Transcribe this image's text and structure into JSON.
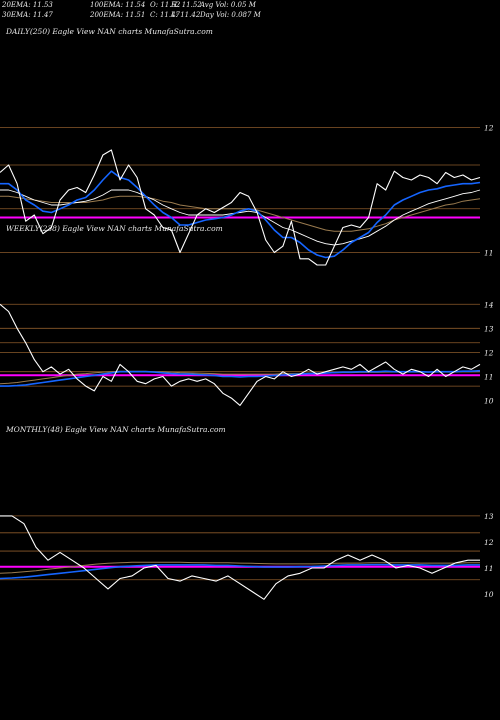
{
  "header": {
    "row1": [
      {
        "key": "ema20_label",
        "text": "20EMA: 11.53"
      },
      {
        "key": "ema100_label",
        "text": "100EMA: 11.54"
      },
      {
        "key": "open_label",
        "text": "O: 11.52"
      },
      {
        "key": "high_label",
        "text": "H: 11.52"
      },
      {
        "key": "avgvol_label",
        "text": "Avg Vol: 0.05 M"
      }
    ],
    "row2": [
      {
        "key": "ema30_label",
        "text": "30EMA: 11.47"
      },
      {
        "key": "ema200_label",
        "text": "200EMA: 11.51"
      },
      {
        "key": "close_label",
        "text": "C: 11.47"
      },
      {
        "key": "low_label",
        "text": "L: 11.42"
      },
      {
        "key": "dayvol_label",
        "text": "Day Vol: 0.087 M"
      }
    ]
  },
  "colors": {
    "background": "#000000",
    "price": "#ffffff",
    "ema_short": "#1565ff",
    "ema_long": "#9a7b4f",
    "ema_mid": "#ffffff",
    "level_line": "#ff00ff",
    "grid": "#8b5a2b"
  },
  "chart_data": [
    {
      "type": "line",
      "panel": "daily",
      "label": "DAILY(250) Eagle  View  NAN  charts MunafaSutra.com",
      "y_ticks": [
        12,
        11
      ],
      "ylim": [
        10.7,
        12.3
      ],
      "grid_levels": [
        12,
        11.7,
        11.35,
        11
      ],
      "level_line": 11.28,
      "series": [
        {
          "role": "price",
          "color": "#ffffff",
          "values": [
            11.64,
            11.7,
            11.55,
            11.25,
            11.3,
            11.15,
            11.2,
            11.42,
            11.5,
            11.52,
            11.48,
            11.62,
            11.78,
            11.82,
            11.58,
            11.7,
            11.6,
            11.35,
            11.3,
            11.2,
            11.18,
            11.0,
            11.15,
            11.3,
            11.35,
            11.32,
            11.36,
            11.4,
            11.48,
            11.45,
            11.32,
            11.1,
            11.0,
            11.05,
            11.25,
            10.95,
            10.95,
            10.9,
            10.9,
            11.05,
            11.2,
            11.22,
            11.2,
            11.28,
            11.55,
            11.5,
            11.65,
            11.6,
            11.58,
            11.62,
            11.6,
            11.55,
            11.64,
            11.6,
            11.62,
            11.58,
            11.6
          ]
        },
        {
          "role": "ema_short",
          "color": "#1565ff",
          "values": [
            11.55,
            11.55,
            11.5,
            11.42,
            11.38,
            11.33,
            11.32,
            11.35,
            11.38,
            11.42,
            11.44,
            11.5,
            11.58,
            11.65,
            11.6,
            11.58,
            11.52,
            11.45,
            11.38,
            11.32,
            11.28,
            11.22,
            11.22,
            11.24,
            11.26,
            11.27,
            11.28,
            11.3,
            11.33,
            11.35,
            11.33,
            11.26,
            11.18,
            11.12,
            11.12,
            11.08,
            11.02,
            10.98,
            10.96,
            10.97,
            11.02,
            11.08,
            11.12,
            11.16,
            11.24,
            11.3,
            11.38,
            11.42,
            11.45,
            11.48,
            11.5,
            11.51,
            11.53,
            11.54,
            11.55,
            11.55,
            11.56
          ]
        },
        {
          "role": "ema_mid",
          "color": "#ffffff",
          "values": [
            11.5,
            11.5,
            11.48,
            11.45,
            11.42,
            11.4,
            11.38,
            11.38,
            11.39,
            11.4,
            11.41,
            11.43,
            11.46,
            11.5,
            11.5,
            11.5,
            11.48,
            11.45,
            11.42,
            11.38,
            11.35,
            11.32,
            11.3,
            11.3,
            11.3,
            11.3,
            11.3,
            11.31,
            11.32,
            11.33,
            11.32,
            11.28,
            11.24,
            11.2,
            11.18,
            11.15,
            11.12,
            11.09,
            11.07,
            11.06,
            11.07,
            11.09,
            11.11,
            11.13,
            11.17,
            11.21,
            11.26,
            11.3,
            11.33,
            11.36,
            11.39,
            11.41,
            11.43,
            11.45,
            11.47,
            11.48,
            11.5
          ]
        },
        {
          "role": "ema_long",
          "color": "#9a7b4f",
          "values": [
            11.45,
            11.45,
            11.44,
            11.43,
            11.42,
            11.41,
            11.4,
            11.4,
            11.4,
            11.4,
            11.4,
            11.41,
            11.42,
            11.44,
            11.45,
            11.45,
            11.45,
            11.44,
            11.43,
            11.41,
            11.4,
            11.38,
            11.37,
            11.36,
            11.35,
            11.35,
            11.35,
            11.35,
            11.35,
            11.35,
            11.34,
            11.32,
            11.3,
            11.28,
            11.26,
            11.24,
            11.22,
            11.2,
            11.18,
            11.17,
            11.17,
            11.17,
            11.18,
            11.19,
            11.21,
            11.23,
            11.26,
            11.28,
            11.3,
            11.32,
            11.34,
            11.36,
            11.38,
            11.39,
            11.41,
            11.42,
            11.43
          ]
        }
      ]
    },
    {
      "type": "line",
      "panel": "weekly",
      "label": "WEEKLY(238) Eagle  View  NAN  charts MunafaSutra.com",
      "y_ticks": [
        14,
        13,
        12,
        11,
        10
      ],
      "ylim": [
        9.4,
        14.8
      ],
      "grid_levels": [
        14,
        13,
        12.4,
        12,
        11.2,
        10.6
      ],
      "level_line": 11.05,
      "series": [
        {
          "role": "price",
          "color": "#ffffff",
          "values": [
            14.0,
            13.7,
            13.0,
            12.4,
            11.7,
            11.2,
            11.4,
            11.1,
            11.3,
            10.9,
            10.6,
            10.4,
            11.0,
            10.8,
            11.5,
            11.2,
            10.8,
            10.7,
            10.9,
            11.0,
            10.6,
            10.8,
            10.9,
            10.8,
            10.9,
            10.7,
            10.3,
            10.1,
            9.8,
            10.3,
            10.8,
            11.0,
            10.9,
            11.2,
            11.0,
            11.1,
            11.3,
            11.1,
            11.2,
            11.3,
            11.4,
            11.3,
            11.5,
            11.2,
            11.4,
            11.6,
            11.3,
            11.1,
            11.3,
            11.2,
            11.0,
            11.3,
            11.0,
            11.2,
            11.4,
            11.3,
            11.5
          ]
        },
        {
          "role": "ema_short",
          "color": "#1565ff",
          "values": [
            10.6,
            10.6,
            10.62,
            10.65,
            10.7,
            10.75,
            10.8,
            10.85,
            10.9,
            10.95,
            11.0,
            11.05,
            11.1,
            11.15,
            11.2,
            11.2,
            11.2,
            11.2,
            11.18,
            11.15,
            11.12,
            11.1,
            11.1,
            11.08,
            11.06,
            11.04,
            11.0,
            11.0,
            10.98,
            11.0,
            11.0,
            11.02,
            11.04,
            11.06,
            11.08,
            11.1,
            11.12,
            11.12,
            11.14,
            11.16,
            11.18,
            11.18,
            11.2,
            11.2,
            11.2,
            11.22,
            11.2,
            11.2,
            11.2,
            11.2,
            11.18,
            11.2,
            11.2,
            11.2,
            11.22,
            11.22,
            11.24
          ]
        },
        {
          "role": "ema_long",
          "color": "#9a7b4f",
          "values": [
            10.7,
            10.72,
            10.75,
            10.8,
            10.85,
            10.9,
            10.95,
            11.0,
            11.05,
            11.1,
            11.12,
            11.15,
            11.18,
            11.2,
            11.22,
            11.22,
            11.22,
            11.22,
            11.2,
            11.2,
            11.18,
            11.16,
            11.15,
            11.14,
            11.13,
            11.12,
            11.1,
            11.1,
            11.1,
            11.1,
            11.1,
            11.1,
            11.1,
            11.12,
            11.12,
            11.12,
            11.14,
            11.14,
            11.14,
            11.15,
            11.16,
            11.16,
            11.17,
            11.17,
            11.17,
            11.18,
            11.18,
            11.18,
            11.18,
            11.18,
            11.18,
            11.18,
            11.18,
            11.18,
            11.19,
            11.19,
            11.2
          ]
        }
      ]
    },
    {
      "type": "line",
      "panel": "monthly",
      "label": "MONTHLY(48) Eagle  View  NAN  charts MunafaSutra.com",
      "y_ticks": [
        13,
        12,
        11,
        10
      ],
      "ylim": [
        9.2,
        13.8
      ],
      "grid_levels": [
        13,
        12.35,
        11.65,
        10.55
      ],
      "level_line": 11.05,
      "series": [
        {
          "role": "price",
          "color": "#ffffff",
          "values": [
            13.0,
            13.0,
            12.7,
            11.8,
            11.3,
            11.6,
            11.3,
            11.0,
            10.6,
            10.2,
            10.6,
            10.7,
            11.0,
            11.1,
            10.6,
            10.5,
            10.7,
            10.6,
            10.5,
            10.7,
            10.4,
            10.1,
            9.8,
            10.4,
            10.7,
            10.8,
            11.0,
            11.0,
            11.3,
            11.5,
            11.3,
            11.5,
            11.3,
            11.0,
            11.1,
            11.0,
            10.8,
            11.0,
            11.2,
            11.3,
            11.3
          ]
        },
        {
          "role": "ema_short",
          "color": "#1565ff",
          "values": [
            10.6,
            10.62,
            10.65,
            10.7,
            10.75,
            10.8,
            10.85,
            10.9,
            10.95,
            11.0,
            11.05,
            11.08,
            11.1,
            11.12,
            11.12,
            11.12,
            11.12,
            11.12,
            11.1,
            11.1,
            11.08,
            11.06,
            11.04,
            11.04,
            11.04,
            11.05,
            11.06,
            11.08,
            11.1,
            11.12,
            11.12,
            11.13,
            11.13,
            11.12,
            11.12,
            11.12,
            11.1,
            11.1,
            11.1,
            11.12,
            11.12
          ]
        },
        {
          "role": "ema_long",
          "color": "#9a7b4f",
          "values": [
            10.8,
            10.82,
            10.86,
            10.9,
            10.95,
            11.0,
            11.05,
            11.1,
            11.15,
            11.18,
            11.2,
            11.22,
            11.22,
            11.22,
            11.22,
            11.22,
            11.21,
            11.2,
            11.2,
            11.2,
            11.19,
            11.18,
            11.17,
            11.16,
            11.16,
            11.16,
            11.16,
            11.17,
            11.18,
            11.19,
            11.19,
            11.2,
            11.2,
            11.2,
            11.2,
            11.19,
            11.19,
            11.19,
            11.19,
            11.2,
            11.2
          ]
        }
      ]
    }
  ]
}
